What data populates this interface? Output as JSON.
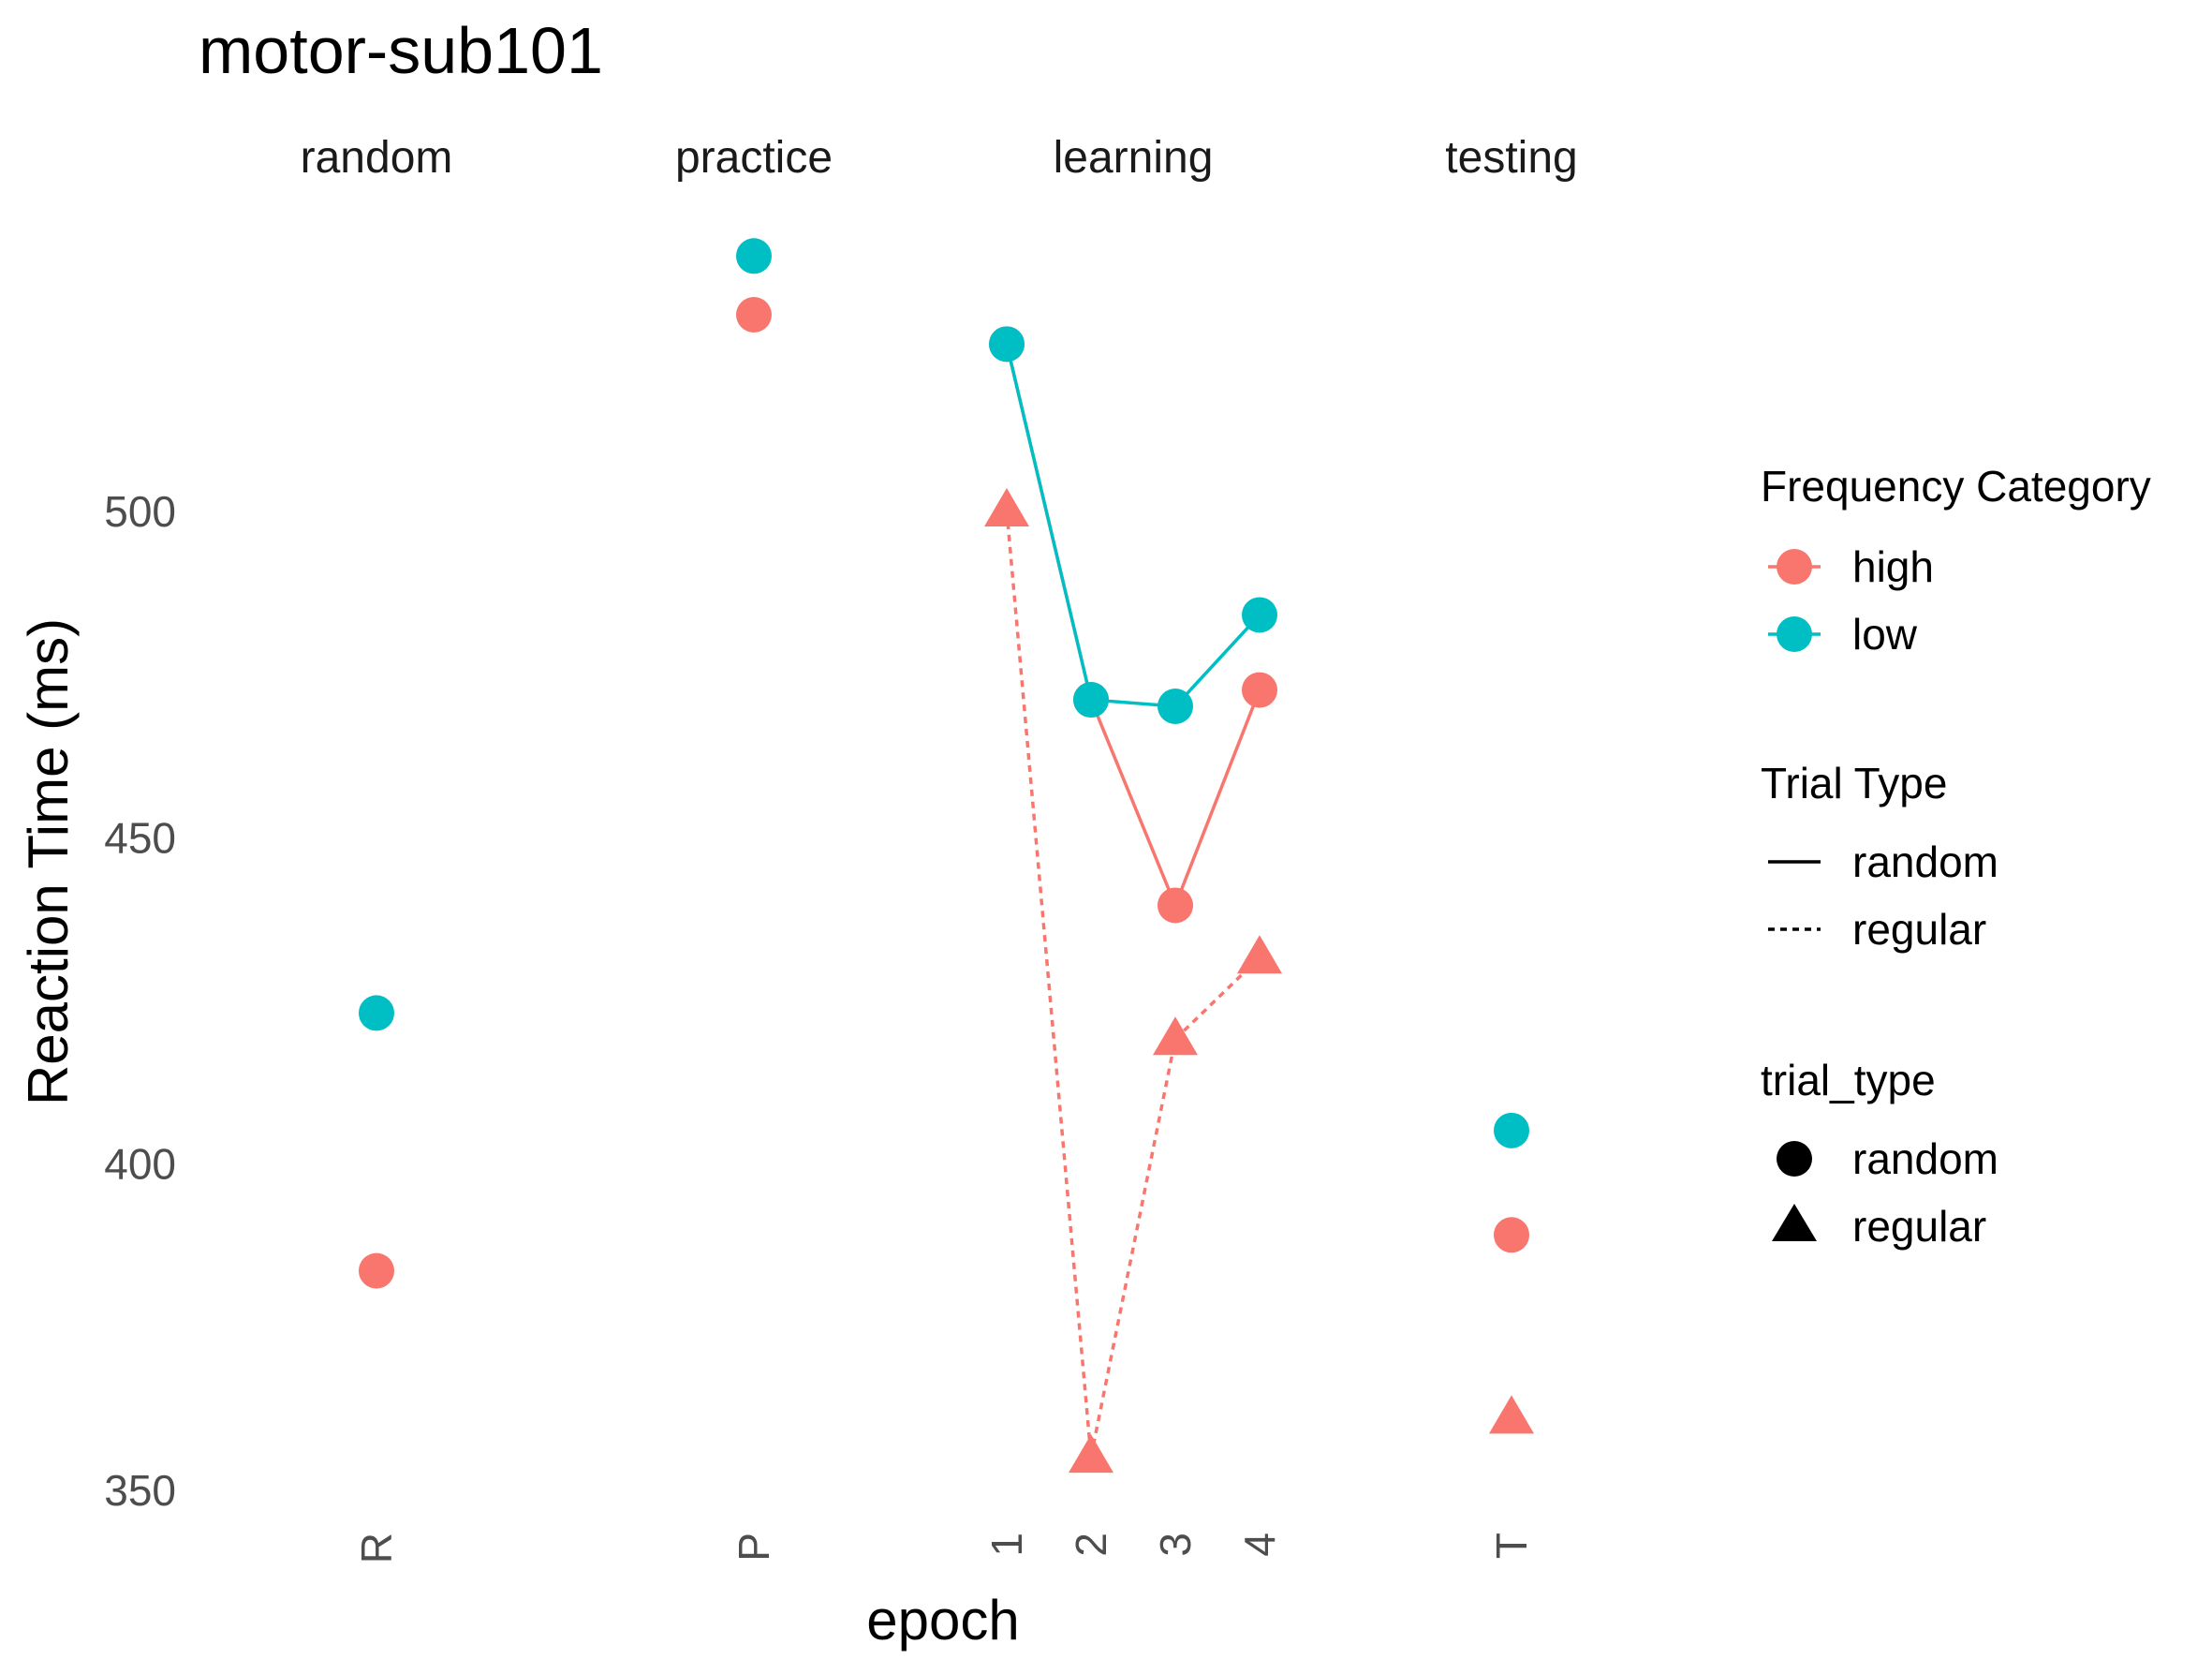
{
  "chart_data": {
    "type": "scatter",
    "title": "motor-sub101",
    "xlabel": "epoch",
    "ylabel": "Reaction Time (ms)",
    "panels": [
      "random",
      "practice",
      "learning",
      "testing"
    ],
    "ylim": [
      340,
      537
    ],
    "yticks": [
      350,
      400,
      450,
      500
    ],
    "grid": false,
    "colors": {
      "high": "#F8766D",
      "low": "#00BFC4",
      "legend_key": "#000000"
    },
    "legend": {
      "placement": "right",
      "frequency_title": "Frequency Category",
      "frequency_items": [
        "high",
        "low"
      ],
      "linetype_title": "Trial Type",
      "linetype_items": [
        "random",
        "regular"
      ],
      "shape_title": "trial_type",
      "shape_items": [
        "random",
        "regular"
      ]
    },
    "series": [
      {
        "panel": "random",
        "freq": "high",
        "trial": "random",
        "connect": false,
        "x": [
          "R"
        ],
        "y": [
          383.5
        ]
      },
      {
        "panel": "random",
        "freq": "low",
        "trial": "random",
        "connect": false,
        "x": [
          "R"
        ],
        "y": [
          423
        ]
      },
      {
        "panel": "practice",
        "freq": "high",
        "trial": "random",
        "connect": false,
        "x": [
          "P"
        ],
        "y": [
          530
        ]
      },
      {
        "panel": "practice",
        "freq": "low",
        "trial": "random",
        "connect": false,
        "x": [
          "P"
        ],
        "y": [
          539
        ]
      },
      {
        "panel": "learning",
        "freq": "high",
        "trial": "random",
        "connect": true,
        "x": [
          "1",
          "2",
          "3",
          "4"
        ],
        "y": [
          525.5,
          471,
          439.5,
          472.5
        ]
      },
      {
        "panel": "learning",
        "freq": "low",
        "trial": "random",
        "connect": true,
        "x": [
          "1",
          "2",
          "3",
          "4"
        ],
        "y": [
          525.5,
          471,
          470,
          484
        ]
      },
      {
        "panel": "learning",
        "freq": "high",
        "trial": "regular",
        "connect": true,
        "x": [
          "1",
          "2",
          "3",
          "4"
        ],
        "y": [
          500,
          355,
          419,
          431.5
        ]
      },
      {
        "panel": "testing",
        "freq": "high",
        "trial": "random",
        "connect": false,
        "x": [
          "T"
        ],
        "y": [
          389
        ]
      },
      {
        "panel": "testing",
        "freq": "low",
        "trial": "random",
        "connect": false,
        "x": [
          "T"
        ],
        "y": [
          405
        ]
      },
      {
        "panel": "testing",
        "freq": "high",
        "trial": "regular",
        "connect": false,
        "x": [
          "T"
        ],
        "y": [
          361
        ]
      }
    ]
  }
}
